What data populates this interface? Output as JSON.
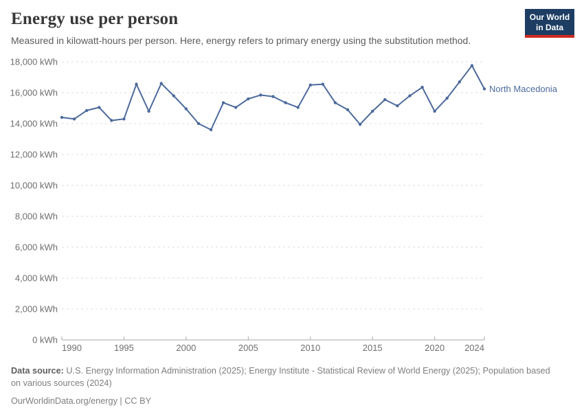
{
  "header": {
    "title": "Energy use per person",
    "subtitle": "Measured in kilowatt-hours per person. Here, energy refers to primary energy using the substitution method."
  },
  "logo": {
    "line1": "Our World",
    "line2": "in Data",
    "bg_color": "#1d3d63",
    "bar_color": "#d0291f"
  },
  "chart_data": {
    "type": "line",
    "title": "Energy use per person",
    "xlabel": "",
    "ylabel": "",
    "unit": "kWh",
    "ylim": [
      0,
      18000
    ],
    "ytick_step": 2000,
    "ytick_suffix": " kWh",
    "xlim": [
      1990,
      2024
    ],
    "xticks": [
      1990,
      1995,
      2000,
      2005,
      2010,
      2015,
      2020,
      2024
    ],
    "grid": "dashed-horizontal",
    "legend_position": "end-of-line-label",
    "series": [
      {
        "name": "North Macedonia",
        "color": "#4C6A9C",
        "x": [
          1990,
          1991,
          1992,
          1993,
          1994,
          1995,
          1996,
          1997,
          1998,
          1999,
          2000,
          2001,
          2002,
          2003,
          2004,
          2005,
          2006,
          2007,
          2008,
          2009,
          2010,
          2011,
          2012,
          2013,
          2014,
          2015,
          2016,
          2017,
          2018,
          2019,
          2020,
          2021,
          2022,
          2023,
          2024
        ],
        "values": [
          14400,
          14300,
          14850,
          15050,
          14200,
          14300,
          16550,
          14800,
          16600,
          15800,
          14950,
          14000,
          13600,
          15350,
          15050,
          15600,
          15850,
          15750,
          15350,
          15050,
          16500,
          16550,
          15350,
          14900,
          13950,
          14800,
          15550,
          15150,
          15800,
          16350,
          14800,
          15650,
          16700,
          17750,
          16250
        ]
      }
    ]
  },
  "footer": {
    "datasource_label": "Data source:",
    "datasource_text": " U.S. Energy Information Administration (2025); Energy Institute - Statistical Review of World Energy (2025); Population based on various sources (2024)",
    "license_text": "OurWorldinData.org/energy | CC BY"
  }
}
